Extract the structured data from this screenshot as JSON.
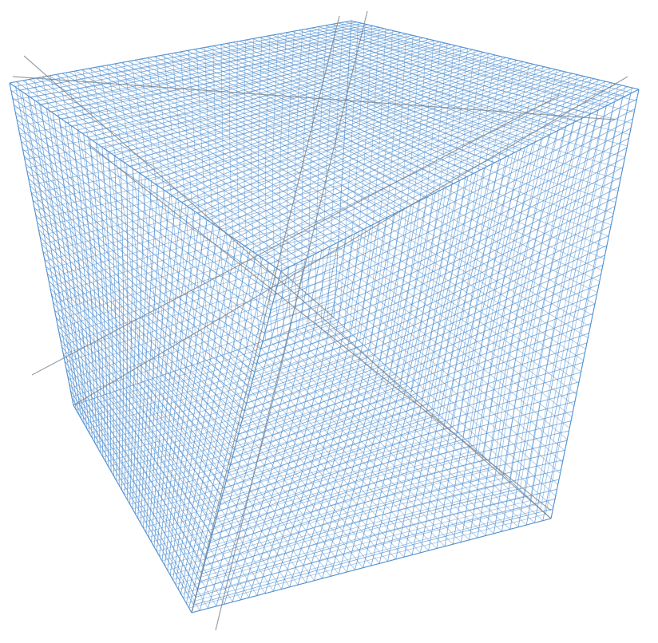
{
  "scene": {
    "subject": "wire-mesh-cube",
    "colors": {
      "background": "#ffffff",
      "mesh": "#4f8fd0",
      "cable": "#7a7f86"
    }
  }
}
